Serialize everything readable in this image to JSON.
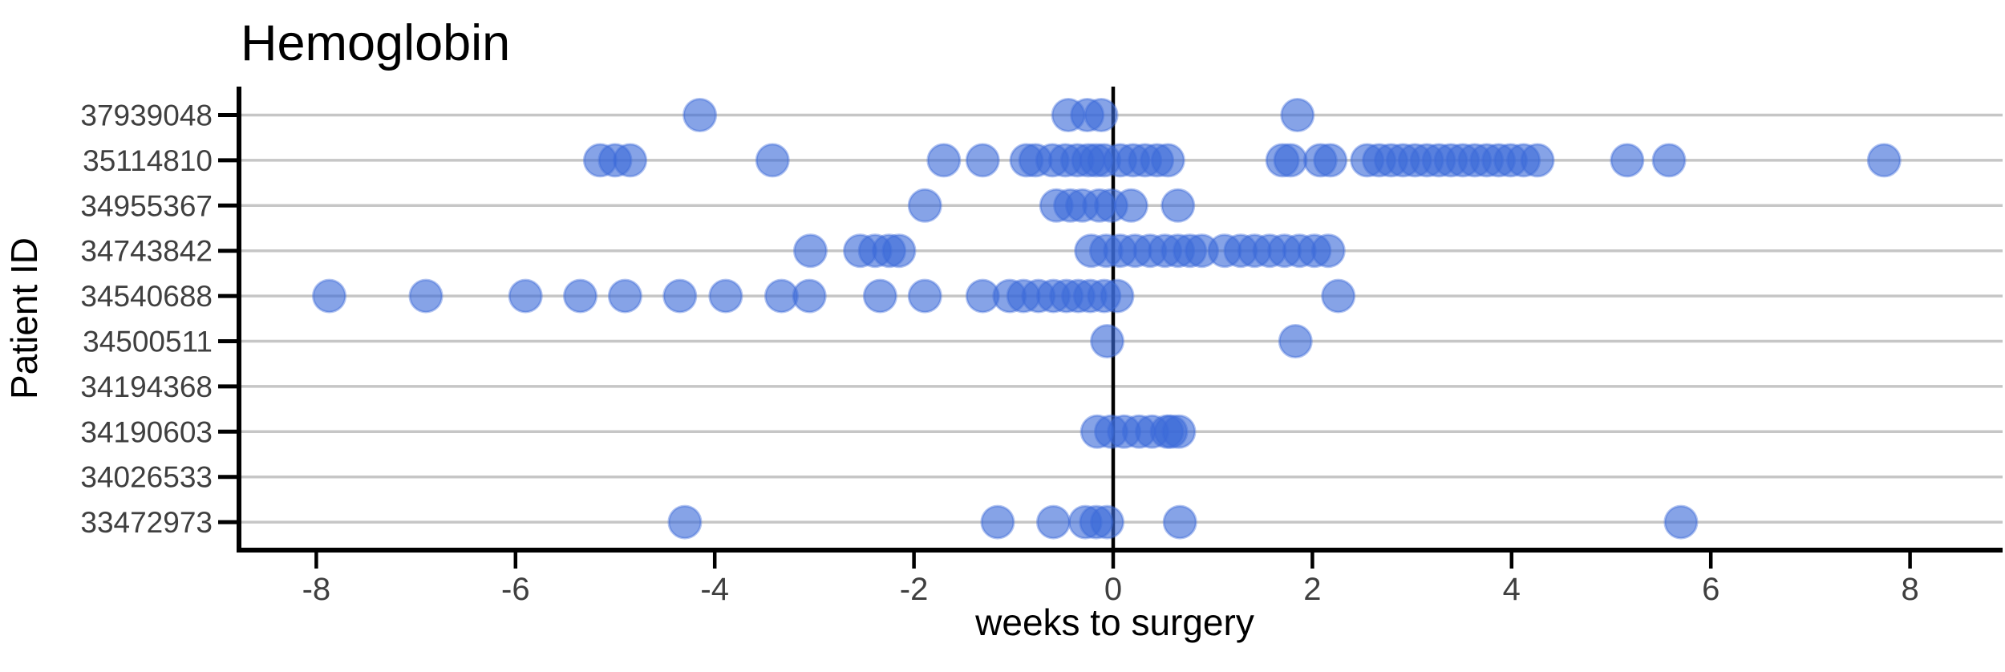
{
  "title": "Hemoglobin",
  "chart_data": {
    "type": "scatter",
    "title": "Hemoglobin",
    "xlabel": "weeks to surgery",
    "ylabel": "Patient ID",
    "x_ticks": [
      -8,
      -6,
      -4,
      -2,
      0,
      2,
      4,
      6,
      8
    ],
    "xlim": [
      -8.8,
      8.95
    ],
    "grid": "horizontal-only",
    "legend": "none",
    "reference_line_x": 0,
    "point_style": {
      "color": "#3c6ad9",
      "opacity": 0.62,
      "radius_px": 20
    },
    "categories_top_to_bottom": [
      "37939048",
      "35114810",
      "34955367",
      "34743842",
      "34540688",
      "34500511",
      "34194368",
      "34190603",
      "34026533",
      "33472973"
    ],
    "series": [
      {
        "patient_id": "37939048",
        "weeks_to_surgery": [
          -4.15,
          -0.45,
          -0.26,
          -0.12,
          1.85
        ]
      },
      {
        "patient_id": "35114810",
        "weeks_to_surgery": [
          -5.15,
          -5.0,
          -4.85,
          -3.42,
          -1.7,
          -1.31,
          -0.87,
          -0.78,
          -0.61,
          -0.48,
          -0.36,
          -0.25,
          -0.17,
          -0.09,
          0.07,
          0.2,
          0.32,
          0.44,
          0.55,
          1.7,
          1.78,
          2.08,
          2.18,
          2.55,
          2.67,
          2.79,
          2.91,
          3.03,
          3.15,
          3.27,
          3.39,
          3.51,
          3.63,
          3.75,
          3.87,
          3.99,
          4.12,
          4.26,
          5.16,
          5.58,
          7.74
        ]
      },
      {
        "patient_id": "34955367",
        "weeks_to_surgery": [
          -1.89,
          -0.57,
          -0.43,
          -0.31,
          -0.14,
          -0.02,
          0.18,
          0.65
        ]
      },
      {
        "patient_id": "34743842",
        "weeks_to_surgery": [
          -3.04,
          -2.54,
          -2.39,
          -2.25,
          -2.15,
          -0.22,
          -0.07,
          0.07,
          0.22,
          0.37,
          0.52,
          0.65,
          0.77,
          0.89,
          1.12,
          1.28,
          1.42,
          1.57,
          1.72,
          1.87,
          2.02,
          2.16
        ]
      },
      {
        "patient_id": "34540688",
        "weeks_to_surgery": [
          -7.87,
          -6.9,
          -5.9,
          -5.35,
          -4.9,
          -4.35,
          -3.89,
          -3.33,
          -3.05,
          -2.34,
          -1.89,
          -1.31,
          -1.04,
          -0.9,
          -0.75,
          -0.6,
          -0.47,
          -0.35,
          -0.23,
          -0.09,
          0.04,
          2.26
        ]
      },
      {
        "patient_id": "34500511",
        "weeks_to_surgery": [
          -0.06,
          1.83
        ]
      },
      {
        "patient_id": "34194368",
        "weeks_to_surgery": []
      },
      {
        "patient_id": "34190603",
        "weeks_to_surgery": [
          -0.16,
          -0.02,
          0.11,
          0.26,
          0.39,
          0.54,
          0.58,
          0.66
        ]
      },
      {
        "patient_id": "34026533",
        "weeks_to_surgery": []
      },
      {
        "patient_id": "33472973",
        "weeks_to_surgery": [
          -4.3,
          -1.16,
          -0.6,
          -0.28,
          -0.17,
          -0.06,
          0.67,
          5.7
        ]
      }
    ]
  },
  "colors": {
    "point": "#3c6ad9",
    "gridline": "#c6c6c6",
    "axis": "#000000",
    "tick_label": "#3f3f3f",
    "background": "#ffffff"
  }
}
